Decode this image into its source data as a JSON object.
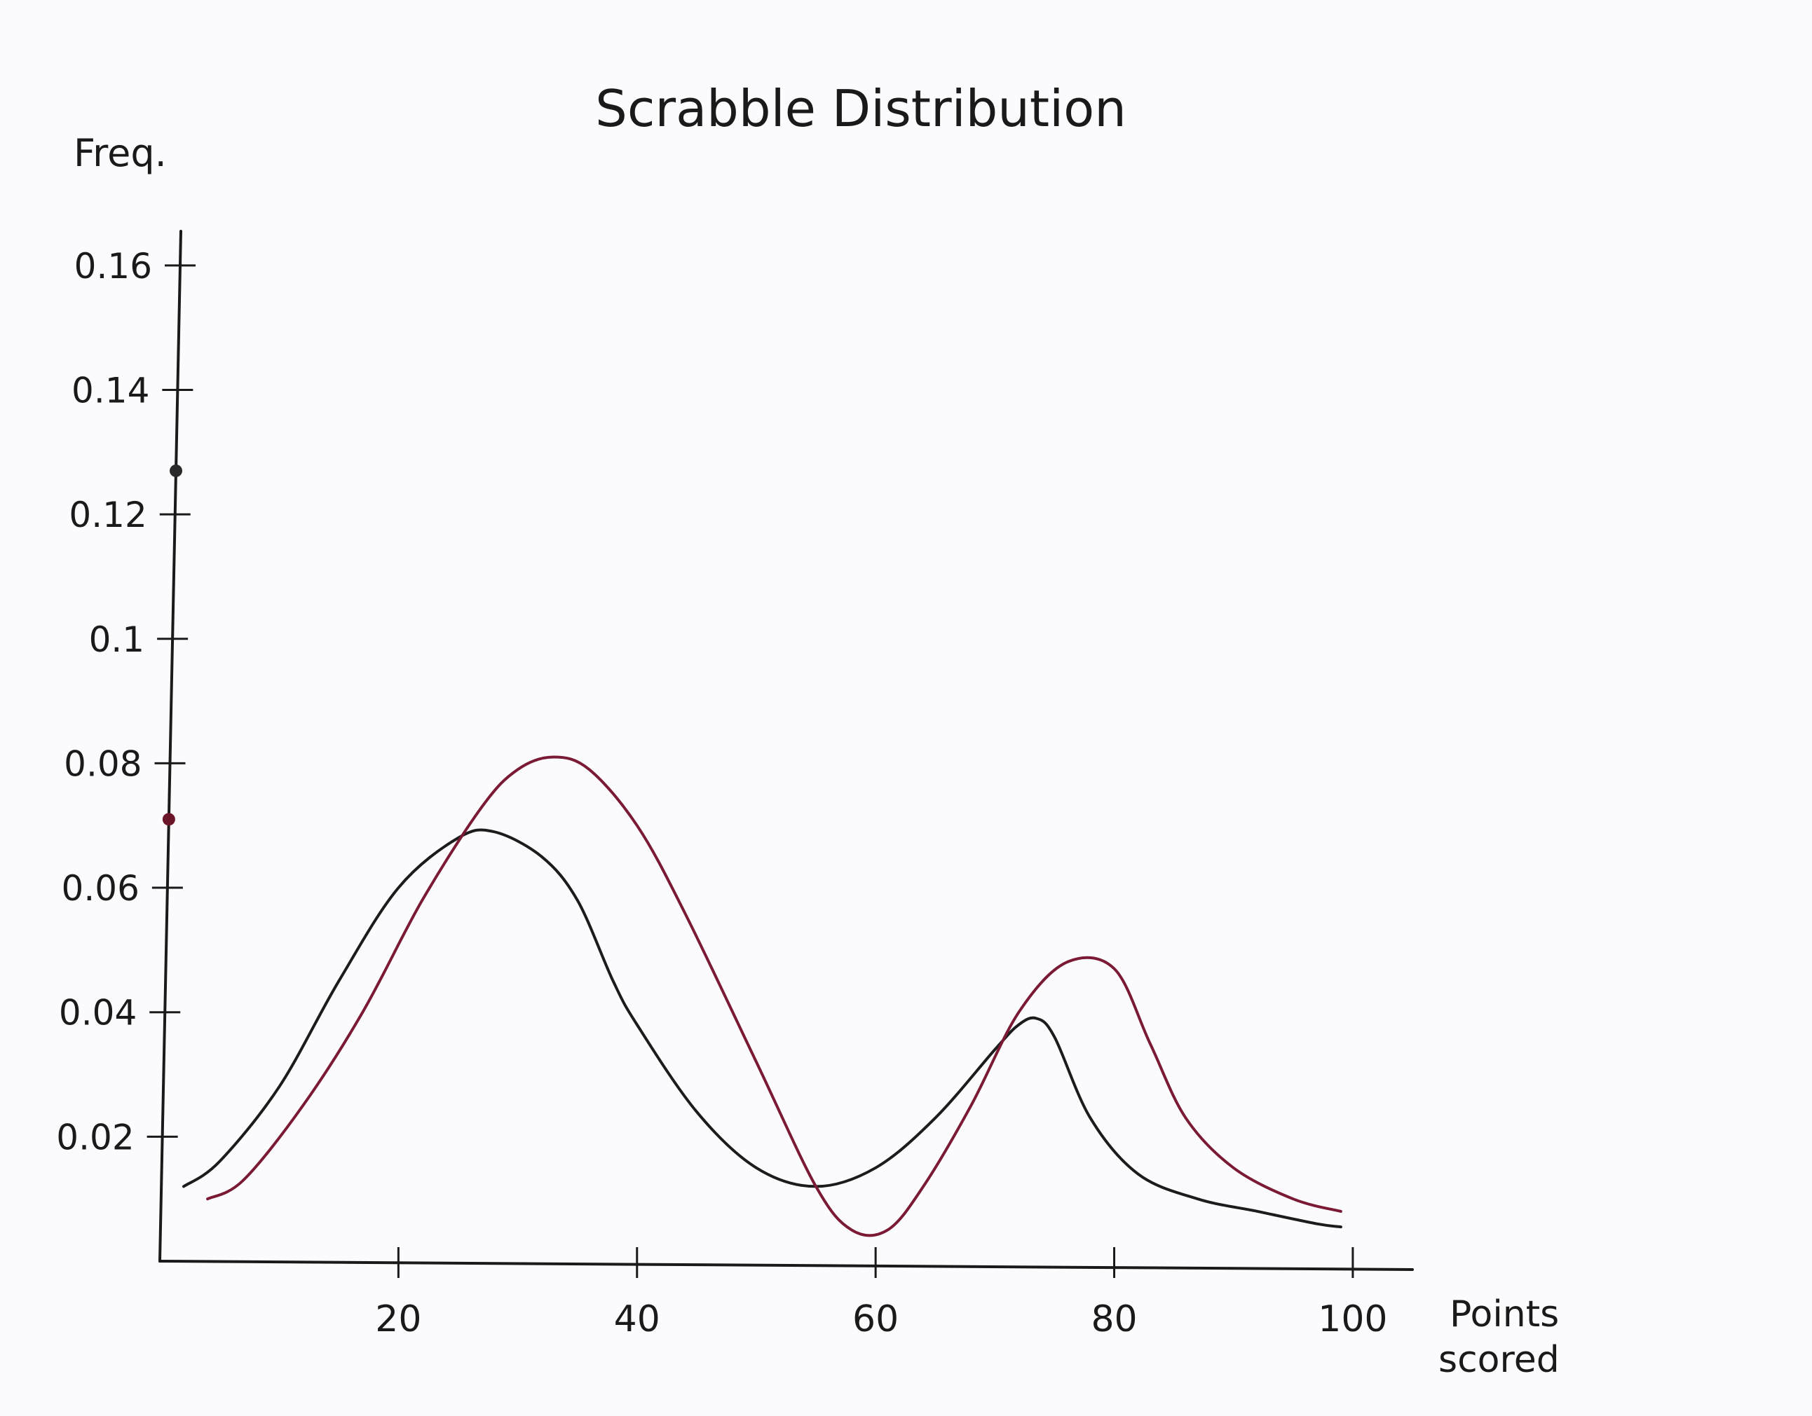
{
  "chart_data": {
    "type": "line",
    "title": "Scrabble Distribution",
    "ylabel": "Freq.",
    "xlabel": "Points scored",
    "xlim": [
      0,
      105
    ],
    "ylim": [
      0,
      0.17
    ],
    "x_ticks": [
      20,
      40,
      60,
      80,
      100
    ],
    "x_tick_labels": [
      "20",
      "40",
      "60",
      "80",
      "100"
    ],
    "y_ticks": [
      0.02,
      0.04,
      0.06,
      0.08,
      0.1,
      0.12,
      0.14,
      0.16
    ],
    "y_tick_labels": [
      "0.02",
      "0.04",
      "0.06",
      "0.08",
      "0.1",
      "0.12",
      "0.14",
      "0.16"
    ],
    "y_axis_dots": [
      {
        "y": 0.127,
        "color": "#2a2a2a"
      },
      {
        "y": 0.071,
        "color": "#6a1528"
      }
    ],
    "grid": false,
    "legend": "none",
    "series": [
      {
        "color": "#1c1c1c",
        "x": [
          2,
          5,
          10,
          15,
          20,
          25,
          28,
          32,
          35,
          38,
          40,
          45,
          50,
          55,
          60,
          65,
          70,
          72,
          73.5,
          75,
          78,
          82,
          87,
          92,
          97,
          99
        ],
        "y": [
          0.012,
          0.016,
          0.028,
          0.045,
          0.06,
          0.068,
          0.069,
          0.065,
          0.058,
          0.045,
          0.038,
          0.024,
          0.015,
          0.012,
          0.015,
          0.023,
          0.034,
          0.038,
          0.039,
          0.036,
          0.023,
          0.014,
          0.01,
          0.008,
          0.006,
          0.0055
        ]
      },
      {
        "color": "#7a1a35",
        "x": [
          4,
          7,
          12,
          17,
          22,
          27,
          30,
          33,
          36,
          40,
          44,
          50,
          55,
          58,
          61,
          64,
          68,
          72,
          76,
          80,
          83,
          86,
          90,
          95,
          99
        ],
        "y": [
          0.01,
          0.013,
          0.025,
          0.04,
          0.058,
          0.073,
          0.079,
          0.081,
          0.079,
          0.07,
          0.056,
          0.032,
          0.012,
          0.005,
          0.005,
          0.012,
          0.025,
          0.04,
          0.048,
          0.047,
          0.035,
          0.023,
          0.015,
          0.01,
          0.008
        ]
      }
    ]
  }
}
